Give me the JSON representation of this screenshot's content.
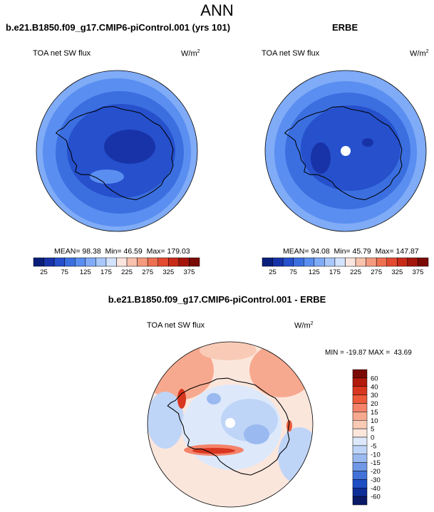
{
  "page": {
    "title": "ANN"
  },
  "panels": {
    "model": {
      "heading": "b.e21.B1850.f09_g17.CMIP6-piControl.001 (yrs 101)",
      "variable": "TOA net SW flux",
      "units_base": "W/m",
      "units_exp": "2",
      "stats": {
        "mean_label": "MEAN=",
        "mean": "98.38",
        "min_label": "Min=",
        "min": "46.59",
        "max_label": "Max=",
        "max": "179.03"
      }
    },
    "obs": {
      "heading": "ERBE",
      "variable": "TOA net SW flux",
      "units_base": "W/m",
      "units_exp": "2",
      "stats": {
        "mean_label": "MEAN=",
        "mean": "94.08",
        "min_label": "Min=",
        "min": "45.79",
        "max_label": "Max=",
        "max": "147.87"
      }
    },
    "diff": {
      "heading": "b.e21.B1850.f09_g17.CMIP6-piControl.001 - ERBE",
      "variable": "TOA net SW flux",
      "units_base": "W/m",
      "units_exp": "2",
      "stats": {
        "min_label": "MIN =",
        "min": "-19.87",
        "max_label": "MAX =",
        "max": "43.69"
      }
    }
  },
  "chart_data": [
    {
      "type": "heatmap",
      "projection": "south-polar-stereographic",
      "title": "b.e21.B1850.f09_g17.CMIP6-piControl.001 (yrs 101)",
      "variable": "TOA net SW flux",
      "units": "W/m^2",
      "colorbar_levels": [
        25,
        50,
        75,
        100,
        125,
        150,
        175,
        200,
        225,
        250,
        275,
        300,
        325,
        350,
        375
      ],
      "colorbar_labels": [
        "25",
        "75",
        "125",
        "175",
        "225",
        "275",
        "325",
        "375"
      ],
      "colors": [
        "#0a1f7a",
        "#1833a8",
        "#2650cc",
        "#3b6fe0",
        "#5a8ef0",
        "#7fabf7",
        "#a8c8fb",
        "#d3e3fd",
        "#fbe6df",
        "#f9c2ad",
        "#f59a7e",
        "#ee7052",
        "#e24a31",
        "#c82a18",
        "#a4160c",
        "#7a0a05"
      ],
      "mean": 98.38,
      "min": 46.59,
      "max": 179.03
    },
    {
      "type": "heatmap",
      "projection": "south-polar-stereographic",
      "title": "ERBE",
      "variable": "TOA net SW flux",
      "units": "W/m^2",
      "colorbar_levels": [
        25,
        50,
        75,
        100,
        125,
        150,
        175,
        200,
        225,
        250,
        275,
        300,
        325,
        350,
        375
      ],
      "colorbar_labels": [
        "25",
        "75",
        "125",
        "175",
        "225",
        "275",
        "325",
        "375"
      ],
      "mean": 94.08,
      "min": 45.79,
      "max": 147.87
    },
    {
      "type": "heatmap",
      "projection": "south-polar-stereographic",
      "title": "b.e21.B1850.f09_g17.CMIP6-piControl.001 - ERBE",
      "variable": "TOA net SW flux",
      "units": "W/m^2",
      "colorbar_levels": [
        -60,
        -40,
        -30,
        -20,
        -15,
        -10,
        -5,
        0,
        5,
        10,
        15,
        20,
        30,
        40,
        60
      ],
      "colorbar_labels": [
        "60",
        "40",
        "30",
        "20",
        "15",
        "10",
        "5",
        "0",
        "-5",
        "-10",
        "-15",
        "-20",
        "-30",
        "-40",
        "-60"
      ],
      "colors": [
        "#7a0a05",
        "#b31a0c",
        "#d8361f",
        "#ec5a3a",
        "#f4836a",
        "#f7a98f",
        "#f9cbb7",
        "#fbe6dc",
        "#dde9fb",
        "#bfd5f7",
        "#9ab9f0",
        "#6f98e6",
        "#4272d8",
        "#1f4ec4",
        "#0f2e98",
        "#0a1a66"
      ],
      "min": -19.87,
      "max": 43.69
    }
  ]
}
